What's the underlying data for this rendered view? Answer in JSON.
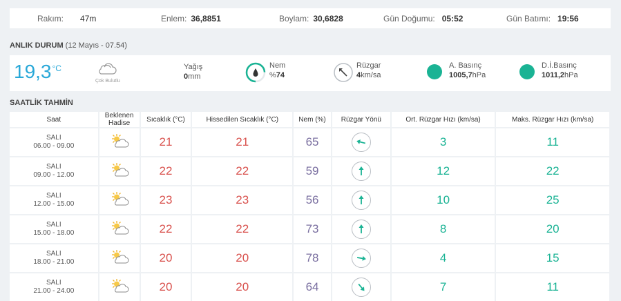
{
  "topbar": {
    "rakim": {
      "label": "Rakım:",
      "value": "47m"
    },
    "enlem": {
      "label": "Enlem:",
      "value": "36,8851"
    },
    "boylam": {
      "label": "Boylam:",
      "value": "30,6828"
    },
    "gun_dogumu": {
      "label": "Gün Doğumu:",
      "value": "05:52"
    },
    "gun_batimi": {
      "label": "Gün Batımı:",
      "value": "19:56"
    }
  },
  "anlik": {
    "title": "ANLIK DURUM",
    "subtitle": "(12 Mayıs - 07.54)",
    "temp": "19,3",
    "temp_unit": "°C",
    "condition": "Çok Bulutlu",
    "yagis": {
      "label": "Yağış",
      "value": "0",
      "unit": "mm"
    },
    "nem": {
      "label": "Nem",
      "prefix": "%",
      "value": "74",
      "fraction": 0.74
    },
    "ruzgar": {
      "label": "Rüzgar",
      "value": "4",
      "unit": "km/sa"
    },
    "a_basinc": {
      "label": "A. Basınç",
      "value": "1005,7",
      "unit": "hPa"
    },
    "di_basinc": {
      "label": "D.İ.Basınç",
      "value": "1011,2",
      "unit": "hPa"
    }
  },
  "saatlik": {
    "title": "SAATLİK TAHMİN",
    "headers": [
      "Saat",
      "Beklenen Hadise",
      "Sıcaklık (°C)",
      "Hissedilen Sıcaklık (°C)",
      "Nem (%)",
      "Rüzgar Yönü",
      "Ort. Rüzgar Hızı (km/sa)",
      "Maks. Rüzgar Hızı (km/sa)"
    ],
    "header_beklenen_1": "Beklenen",
    "header_beklenen_2": "Hadise",
    "rows": [
      {
        "day": "SALI",
        "time": "06.00 - 09.00",
        "icon": "partly-cloudy-icon",
        "sicaklik": "21",
        "hissedilen": "21",
        "nem": "65",
        "wind_dir_deg": 285,
        "ort": "3",
        "maks": "11"
      },
      {
        "day": "SALI",
        "time": "09.00 - 12.00",
        "icon": "partly-cloudy-icon",
        "sicaklik": "22",
        "hissedilen": "22",
        "nem": "59",
        "wind_dir_deg": 0,
        "ort": "12",
        "maks": "22"
      },
      {
        "day": "SALI",
        "time": "12.00 - 15.00",
        "icon": "partly-cloudy-icon",
        "sicaklik": "23",
        "hissedilen": "23",
        "nem": "56",
        "wind_dir_deg": 0,
        "ort": "10",
        "maks": "25"
      },
      {
        "day": "SALI",
        "time": "15.00 - 18.00",
        "icon": "partly-cloudy-icon",
        "sicaklik": "22",
        "hissedilen": "22",
        "nem": "73",
        "wind_dir_deg": 0,
        "ort": "8",
        "maks": "20"
      },
      {
        "day": "SALI",
        "time": "18.00 - 21.00",
        "icon": "partly-cloudy-icon",
        "sicaklik": "20",
        "hissedilen": "20",
        "nem": "78",
        "wind_dir_deg": 100,
        "ort": "4",
        "maks": "15"
      },
      {
        "day": "SALI",
        "time": "21.00 - 24.00",
        "icon": "partly-cloudy-icon",
        "sicaklik": "20",
        "hissedilen": "20",
        "nem": "64",
        "wind_dir_deg": 140,
        "ort": "7",
        "maks": "11"
      }
    ]
  },
  "colors": {
    "accent": "#29a8d8",
    "green": "#1ab394",
    "red": "#d9534f",
    "purple": "#7a6fa0"
  }
}
